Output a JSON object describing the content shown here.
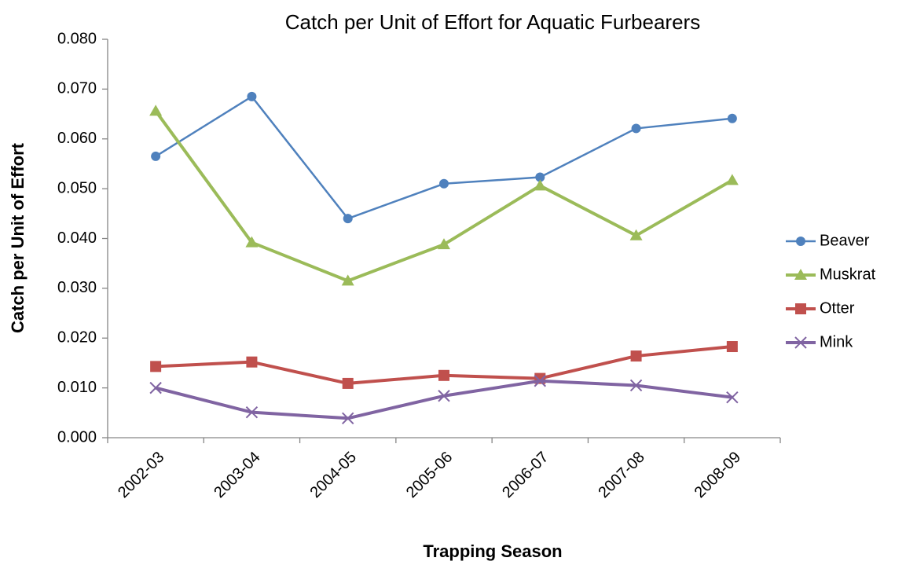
{
  "chart_data": {
    "type": "line",
    "title": "Catch per Unit of Effort for Aquatic Furbearers",
    "x_label": "Trapping Season",
    "y_label": "Catch per Unit of Effort",
    "categories": [
      "2002-03",
      "2003-04",
      "2004-05",
      "2005-06",
      "2006-07",
      "2007-08",
      "2008-09"
    ],
    "series": [
      {
        "name": "Beaver",
        "color": "#4f81bd",
        "marker": "circle",
        "values": [
          0.0565,
          0.0685,
          0.044,
          0.051,
          0.0523,
          0.0621,
          0.0641
        ]
      },
      {
        "name": "Muskrat",
        "color": "#9bbb59",
        "marker": "triangle",
        "values": [
          0.0656,
          0.0392,
          0.0315,
          0.0388,
          0.0506,
          0.0406,
          0.0517
        ]
      },
      {
        "name": "Otter",
        "color": "#c0504d",
        "marker": "square",
        "values": [
          0.0143,
          0.0152,
          0.0109,
          0.0125,
          0.0119,
          0.0164,
          0.0183
        ]
      },
      {
        "name": "Mink",
        "color": "#8064a2",
        "marker": "x",
        "values": [
          0.01,
          0.0051,
          0.0039,
          0.0084,
          0.0114,
          0.0105,
          0.0081
        ]
      }
    ],
    "ylim": [
      0,
      0.08
    ],
    "yticks": [
      {
        "value": 0,
        "label": "0.000"
      },
      {
        "value": 0.01,
        "label": "0.010"
      },
      {
        "value": 0.02,
        "label": "0.020"
      },
      {
        "value": 0.03,
        "label": "0.030"
      },
      {
        "value": 0.04,
        "label": "0.040"
      },
      {
        "value": 0.05,
        "label": "0.050"
      },
      {
        "value": 0.06,
        "label": "0.060"
      },
      {
        "value": 0.07,
        "label": "0.070"
      },
      {
        "value": 0.08,
        "label": "0.080"
      }
    ],
    "grid": false,
    "legend": "right"
  }
}
